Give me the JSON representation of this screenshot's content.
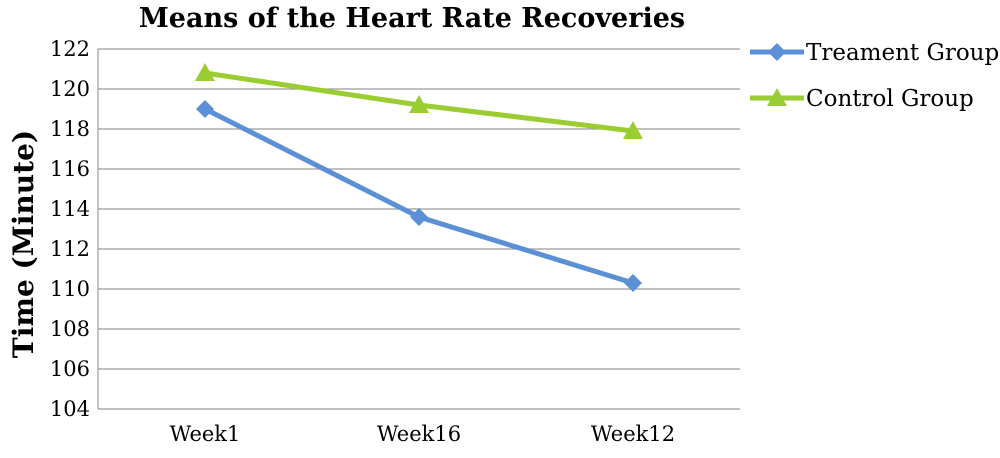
{
  "chart_data": {
    "type": "line",
    "title": "Means of the Heart Rate Recoveries",
    "ylabel": "Time (Minute)",
    "xlabel": "",
    "categories": [
      "Week1",
      "Week16",
      "Week12"
    ],
    "ylim": [
      104,
      122
    ],
    "yticks": [
      104,
      106,
      108,
      110,
      112,
      114,
      116,
      118,
      120,
      122
    ],
    "grid": true,
    "legend_position": "right",
    "series": [
      {
        "name": "Treament Group",
        "values": [
          119.0,
          113.6,
          110.3
        ],
        "color": "#5b8fd6",
        "marker": "diamond"
      },
      {
        "name": "Control Group",
        "values": [
          120.8,
          119.2,
          117.9
        ],
        "color": "#9acd32",
        "marker": "triangle"
      }
    ]
  }
}
